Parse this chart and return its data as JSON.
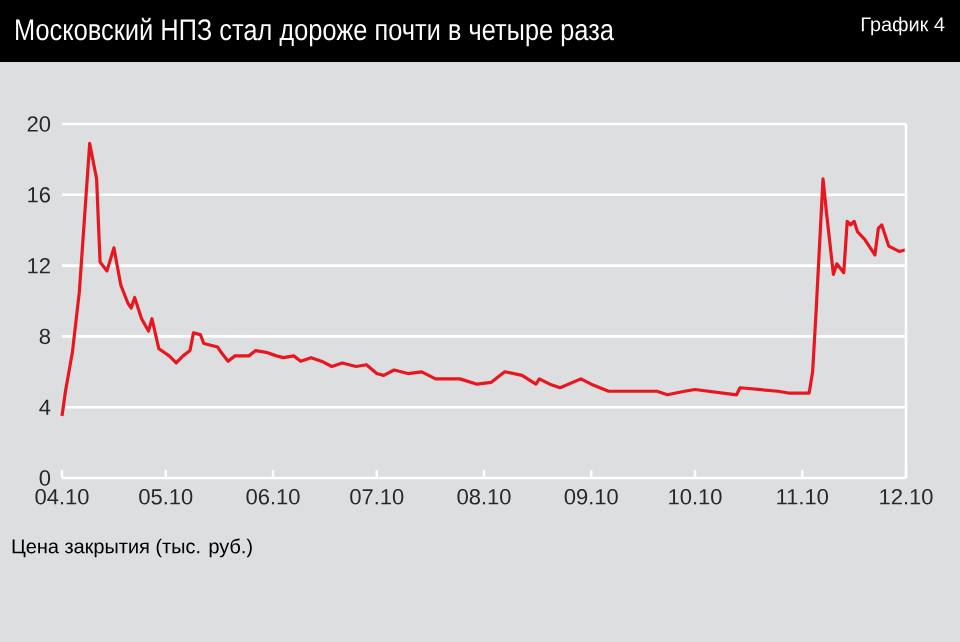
{
  "chart_data": {
    "type": "line",
    "title": "Московский НПЗ стал дороже почти в четыре раза",
    "ylabel": "Цена закрытия (тыс. руб.)",
    "annotations": [
      "График 4"
    ],
    "x": [
      "2010-04-01",
      "2010-04-02",
      "2010-04-04",
      "2010-04-06",
      "2010-04-09",
      "2010-04-11",
      "2010-04-12",
      "2010-04-14",
      "2010-04-16",
      "2010-04-18",
      "2010-04-20",
      "2010-04-21",
      "2010-04-22",
      "2010-04-24",
      "2010-04-26",
      "2010-04-27",
      "2010-04-29",
      "2010-05-02",
      "2010-05-04",
      "2010-05-06",
      "2010-05-08",
      "2010-05-09",
      "2010-05-11",
      "2010-05-12",
      "2010-05-16",
      "2010-05-17",
      "2010-05-19",
      "2010-05-21",
      "2010-05-25",
      "2010-05-27",
      "2010-05-30",
      "2010-06-02",
      "2010-06-04",
      "2010-06-07",
      "2010-06-09",
      "2010-06-12",
      "2010-06-15",
      "2010-06-18",
      "2010-06-21",
      "2010-06-25",
      "2010-06-28",
      "2010-07-01",
      "2010-07-03",
      "2010-07-06",
      "2010-07-10",
      "2010-07-14",
      "2010-07-18",
      "2010-07-25",
      "2010-07-30",
      "2010-08-03",
      "2010-08-07",
      "2010-08-12",
      "2010-08-16",
      "2010-08-17",
      "2010-08-20",
      "2010-08-23",
      "2010-08-29",
      "2010-09-01",
      "2010-09-06",
      "2010-09-12",
      "2010-09-20",
      "2010-09-23",
      "2010-09-28",
      "2010-10-01",
      "2010-10-13",
      "2010-10-14",
      "2010-10-25",
      "2010-10-28",
      "2010-11-03",
      "2010-11-04",
      "2010-11-05",
      "2010-11-07",
      "2010-11-08",
      "2010-11-10",
      "2010-11-11",
      "2010-11-13",
      "2010-11-14",
      "2010-11-15",
      "2010-11-16",
      "2010-11-17",
      "2010-11-19",
      "2010-11-22",
      "2010-11-23",
      "2010-11-24",
      "2010-11-26",
      "2010-11-29",
      "2010-12-01"
    ],
    "series": [
      {
        "color": "#e8161e",
        "values": [
          3.5,
          4.9,
          7.1,
          10.5,
          18.9,
          16.9,
          12.2,
          11.7,
          13.0,
          10.9,
          9.9,
          9.6,
          10.2,
          9.0,
          8.3,
          9.0,
          7.3,
          6.9,
          6.5,
          6.9,
          7.2,
          8.2,
          8.1,
          7.6,
          7.4,
          7.1,
          6.6,
          6.9,
          6.9,
          7.2,
          7.1,
          6.9,
          6.8,
          6.9,
          6.6,
          6.8,
          6.6,
          6.3,
          6.5,
          6.3,
          6.4,
          5.9,
          5.8,
          6.1,
          5.9,
          6.0,
          5.6,
          5.6,
          5.3,
          5.4,
          6.0,
          5.8,
          5.3,
          5.6,
          5.3,
          5.1,
          5.6,
          5.3,
          4.9,
          4.9,
          4.9,
          4.7,
          4.9,
          5.0,
          4.7,
          5.1,
          4.9,
          4.8,
          4.8,
          6.0,
          9.4,
          16.9,
          15.0,
          11.5,
          12.1,
          11.6,
          14.5,
          14.3,
          14.5,
          13.9,
          13.5,
          12.6,
          14.1,
          14.3,
          13.1,
          12.8,
          12.9
        ]
      }
    ],
    "xlim": [
      "2010-04",
      "2010-12"
    ],
    "xticks": [
      {
        "value": "2010-04",
        "label": "04.10"
      },
      {
        "value": "2010-05",
        "label": "05.10"
      },
      {
        "value": "2010-06",
        "label": "06.10"
      },
      {
        "value": "2010-07",
        "label": "07.10"
      },
      {
        "value": "2010-08",
        "label": "08.10"
      },
      {
        "value": "2010-09",
        "label": "09.10"
      },
      {
        "value": "2010-10",
        "label": "10.10"
      },
      {
        "value": "2010-11",
        "label": "11.10"
      },
      {
        "value": "2010-12",
        "label": "12.10"
      }
    ],
    "ylim": [
      0,
      20
    ],
    "yticks": [
      0,
      4,
      8,
      12,
      16,
      20
    ],
    "grid": "y",
    "marker": "none",
    "line_style": "solid"
  }
}
